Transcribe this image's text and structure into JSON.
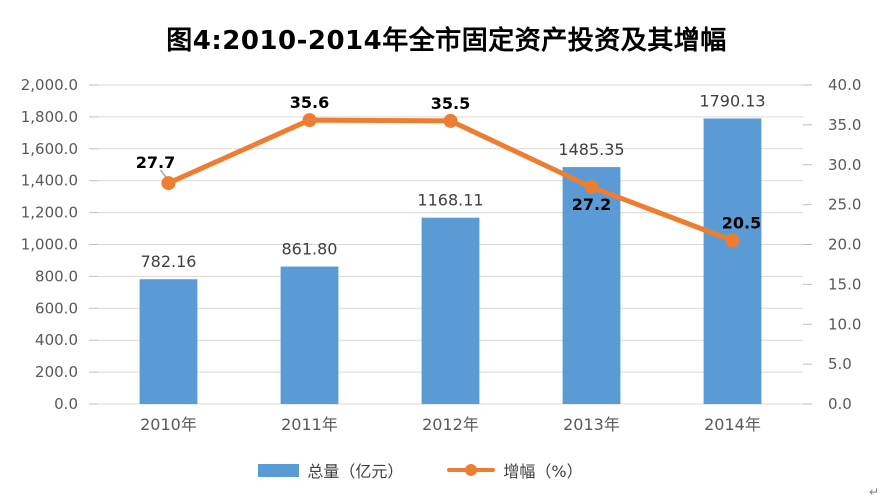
{
  "page": {
    "return_mark": "↵"
  },
  "chart_data": {
    "type": "combo",
    "title": "图4:2010-2014年全市固定资产投资及其增幅",
    "categories": [
      "2010年",
      "2011年",
      "2012年",
      "2013年",
      "2014年"
    ],
    "series": [
      {
        "name": "总量（亿元）",
        "type": "bar",
        "axis": "left",
        "color": "#5B9BD5",
        "values": [
          782.16,
          861.8,
          1168.11,
          1485.35,
          1790.13
        ],
        "labels": [
          "782.16",
          "861.80",
          "1168.11",
          "1485.35",
          "1790.13"
        ]
      },
      {
        "name": "增幅（%）",
        "type": "line",
        "axis": "right",
        "color": "#ED7D31",
        "values": [
          27.7,
          35.6,
          35.5,
          27.2,
          20.5
        ],
        "labels": [
          "27.7",
          "35.6",
          "35.5",
          "27.2",
          "20.5"
        ]
      }
    ],
    "left_axis": {
      "min": 0,
      "max": 2000,
      "step": 200,
      "tick_labels": [
        "0.0",
        "200.0",
        "400.0",
        "600.0",
        "800.0",
        "1,000.0",
        "1,200.0",
        "1,400.0",
        "1,600.0",
        "1,800.0",
        "2,000.0"
      ]
    },
    "right_axis": {
      "min": 0,
      "max": 40,
      "step": 5,
      "tick_labels": [
        "0.0",
        "5.0",
        "10.0",
        "15.0",
        "20.0",
        "25.0",
        "30.0",
        "35.0",
        "40.0"
      ]
    },
    "grid": true,
    "legend_position": "bottom",
    "colors": {
      "grid": "#D9D9D9",
      "tick": "#BFBFBF",
      "axis_text": "#595959",
      "bar_label": "#404040",
      "line_label": "#000000",
      "leader": "#A6A6A6"
    }
  },
  "legend": {
    "items": [
      {
        "label": "总量（亿元）",
        "type": "bar",
        "color": "#5B9BD5"
      },
      {
        "label": "增幅（%）",
        "type": "line",
        "color": "#ED7D31"
      }
    ]
  }
}
